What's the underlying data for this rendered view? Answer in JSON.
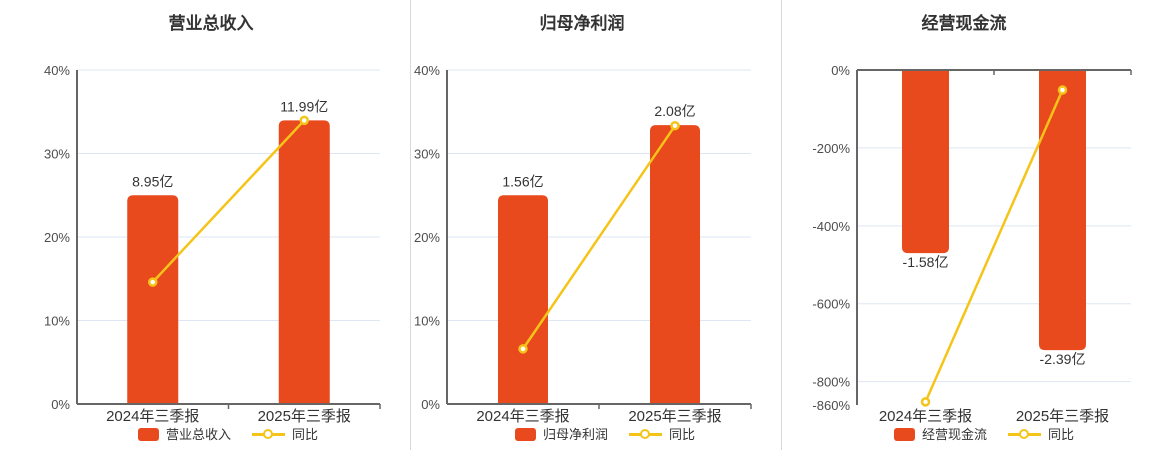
{
  "colors": {
    "bar": "#e8491d",
    "line": "#f5c418",
    "grid": "#dde7f3",
    "axis": "#666666",
    "tick_label": "#4d4d4d",
    "text": "#333333",
    "separator": "#d9d9d9"
  },
  "chart_data": [
    {
      "type": "bar+line",
      "title": "营业总收入",
      "legend_position": "bottom",
      "categories": [
        "2024年三季报",
        "2025年三季报"
      ],
      "bar_series": {
        "name": "营业总收入",
        "value_labels": [
          "8.95亿",
          "11.99亿"
        ],
        "plotted_axis_pct": [
          25.0,
          33.97
        ]
      },
      "line_series": {
        "name": "同比",
        "values_pct": [
          14.6,
          33.97
        ]
      },
      "y_axis": {
        "min": 0,
        "max": 40,
        "ticks": [
          {
            "v": 40,
            "label": "40%",
            "grid": true
          },
          {
            "v": 30,
            "label": "30%",
            "grid": true
          },
          {
            "v": 20,
            "label": "20%",
            "grid": true
          },
          {
            "v": 10,
            "label": "10%",
            "grid": true
          },
          {
            "v": 0,
            "label": "0%",
            "grid": false
          }
        ]
      },
      "value_label_position": "above"
    },
    {
      "type": "bar+line",
      "title": "归母净利润",
      "legend_position": "bottom",
      "categories": [
        "2024年三季报",
        "2025年三季报"
      ],
      "bar_series": {
        "name": "归母净利润",
        "value_labels": [
          "1.56亿",
          "2.08亿"
        ],
        "plotted_axis_pct": [
          25.0,
          33.4
        ]
      },
      "line_series": {
        "name": "同比",
        "values_pct": [
          6.6,
          33.33
        ]
      },
      "y_axis": {
        "min": 0,
        "max": 40,
        "ticks": [
          {
            "v": 40,
            "label": "40%",
            "grid": true
          },
          {
            "v": 30,
            "label": "30%",
            "grid": true
          },
          {
            "v": 20,
            "label": "20%",
            "grid": true
          },
          {
            "v": 10,
            "label": "10%",
            "grid": true
          },
          {
            "v": 0,
            "label": "0%",
            "grid": false
          }
        ]
      },
      "value_label_position": "above"
    },
    {
      "type": "bar+line",
      "title": "经营现金流",
      "legend_position": "bottom",
      "categories": [
        "2024年三季报",
        "2025年三季报"
      ],
      "bar_series": {
        "name": "经营现金流",
        "value_labels": [
          "-1.58亿",
          "-2.39亿"
        ],
        "plotted_axis_pct": [
          -470,
          -719
        ]
      },
      "line_series": {
        "name": "同比",
        "values_pct": [
          -852,
          -51.3
        ]
      },
      "y_axis": {
        "min": -860,
        "max": 0,
        "ticks": [
          {
            "v": 0,
            "label": "0%",
            "grid": false
          },
          {
            "v": -200,
            "label": "-200%",
            "grid": true
          },
          {
            "v": -400,
            "label": "-400%",
            "grid": true
          },
          {
            "v": -600,
            "label": "-600%",
            "grid": true
          },
          {
            "v": -800,
            "label": "-800%",
            "grid": true
          },
          {
            "v": -860,
            "label": "-860%",
            "grid": false
          }
        ]
      },
      "value_label_position": "below"
    }
  ]
}
